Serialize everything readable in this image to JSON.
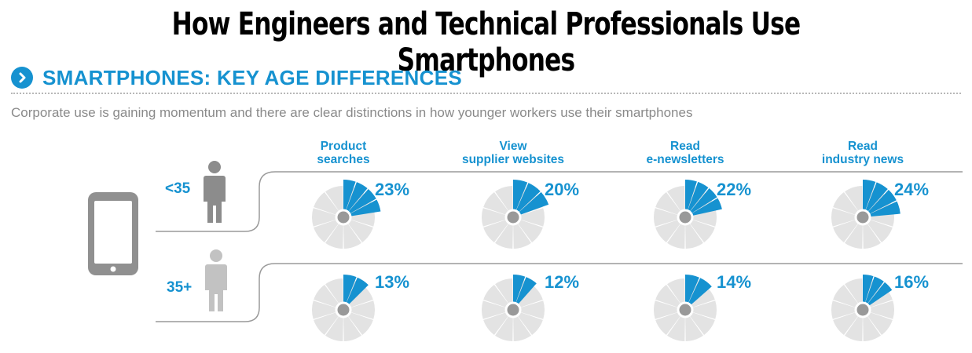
{
  "page_title": "How Engineers and Technical Professionals Use Smartphones",
  "section": {
    "title": "SMARTPHONES:  KEY AGE DIFFERENCES",
    "icon": "chevron-right-icon",
    "subtitle": "Corporate use is gaining momentum and there are clear distinctions in how younger workers use their smartphones"
  },
  "colors": {
    "accent": "#1692d0",
    "wedge_gray": "#e3e3e3",
    "center_gray": "#999999",
    "figure_dark": "#8c8c8c",
    "figure_light": "#c2c2c2"
  },
  "chart_data": {
    "type": "pie",
    "categories": [
      {
        "line1": "Product",
        "line2": "searches"
      },
      {
        "line1": "View",
        "line2": "supplier websites"
      },
      {
        "line1": "Read",
        "line2": "e-newsletters"
      },
      {
        "line1": "Read",
        "line2": "industry news"
      }
    ],
    "series": [
      {
        "name": "<35",
        "values": [
          23,
          20,
          22,
          24
        ],
        "labels": [
          "23%",
          "20%",
          "22%",
          "24%"
        ]
      },
      {
        "name": "35+",
        "values": [
          13,
          12,
          14,
          16
        ],
        "labels": [
          "13%",
          "12%",
          "14%",
          "16%"
        ]
      }
    ]
  }
}
